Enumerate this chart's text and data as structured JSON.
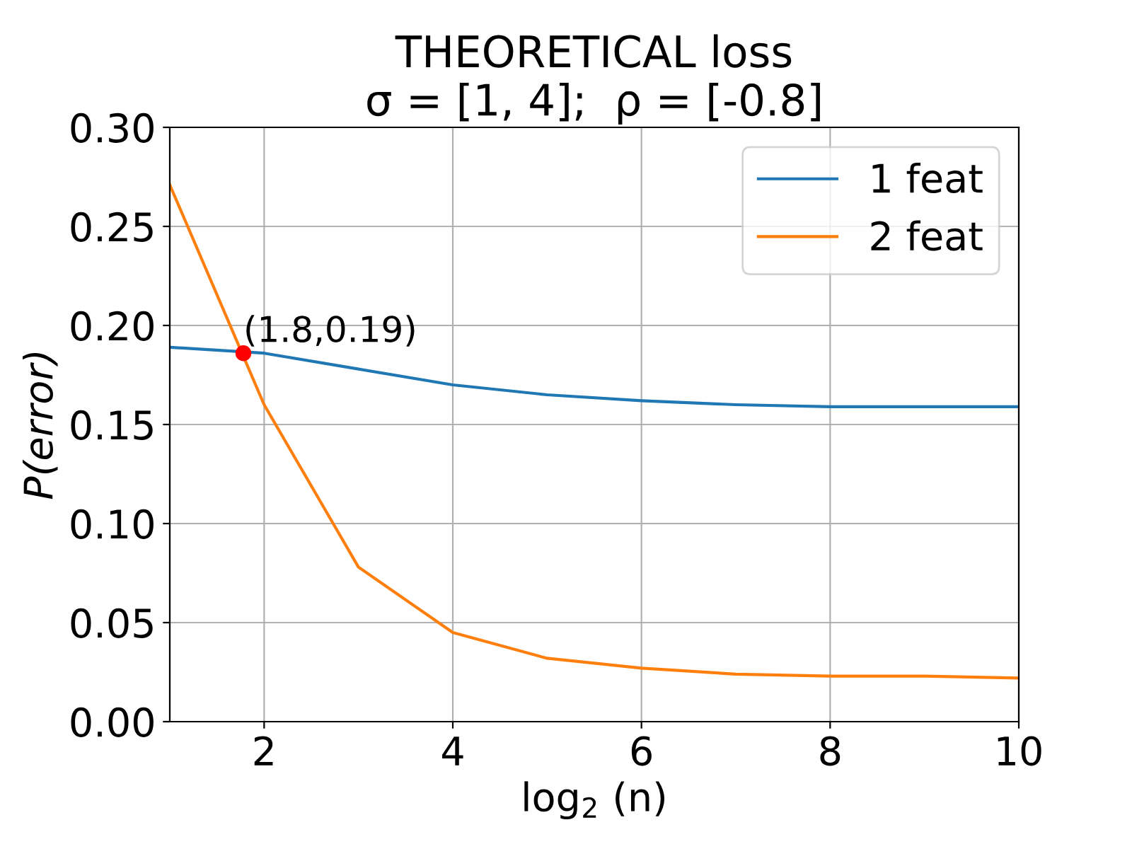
{
  "chart_data": {
    "type": "line",
    "title": "THEORETICAL loss",
    "subtitle": "σ = [1, 4];  ρ = [-0.8]",
    "xlabel": "log$_{2}$ (n)",
    "ylabel": "P(error)",
    "x": [
      1,
      2,
      3,
      4,
      5,
      6,
      7,
      8,
      9,
      10
    ],
    "series": [
      {
        "name": "1 feat",
        "color": "#1f77b4",
        "values": [
          0.189,
          0.186,
          0.178,
          0.17,
          0.165,
          0.162,
          0.16,
          0.159,
          0.159,
          0.159
        ]
      },
      {
        "name": "2 feat",
        "color": "#ff7f0e",
        "values": [
          0.271,
          0.16,
          0.078,
          0.045,
          0.032,
          0.027,
          0.024,
          0.023,
          0.023,
          0.022
        ]
      },
      {
        "type": "scatter",
        "color": "#ff0000",
        "x": [
          1.78
        ],
        "values": [
          0.186
        ]
      }
    ],
    "annotations": [
      {
        "text": "(1.8,0.19)",
        "x": 1.78,
        "y": 0.186
      }
    ],
    "xlim": [
      1,
      10
    ],
    "xticks": [
      2,
      4,
      6,
      8,
      10
    ],
    "ylim": [
      0,
      0.3
    ],
    "yticks": [
      {
        "value": 0,
        "label": "0.00"
      },
      {
        "value": 0.05,
        "label": "0.05"
      },
      {
        "value": 0.1,
        "label": "0.10"
      },
      {
        "value": 0.15,
        "label": "0.15"
      },
      {
        "value": 0.2,
        "label": "0.20"
      },
      {
        "value": 0.25,
        "label": "0.25"
      },
      {
        "value": 0.3,
        "label": "0.30"
      }
    ],
    "grid": true,
    "legend": "top right"
  }
}
